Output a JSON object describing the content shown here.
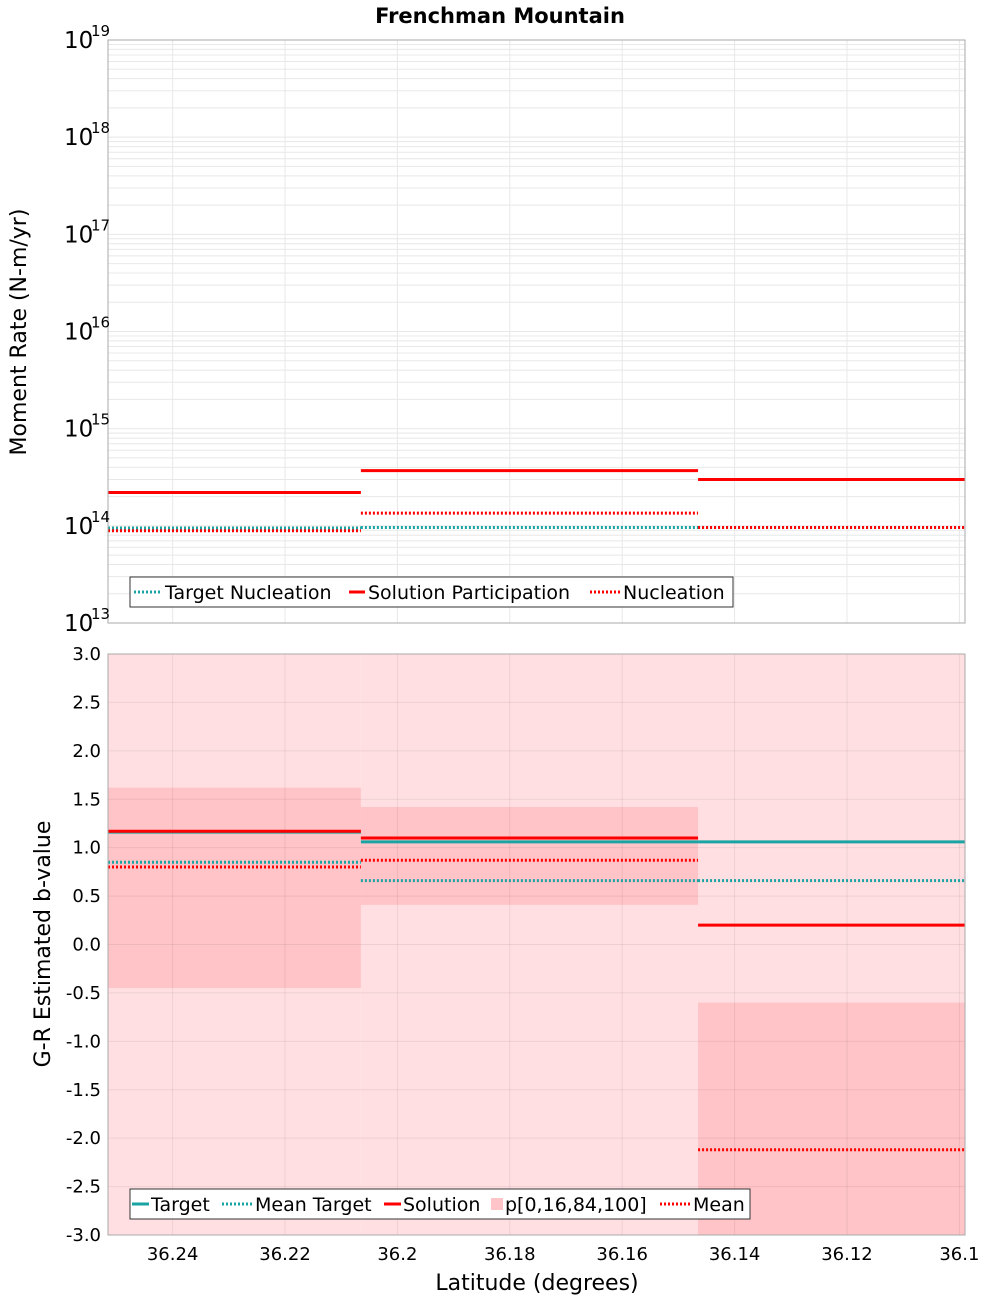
{
  "title": "Frenchman Mountain",
  "colors": {
    "target": "#1aa3a3",
    "solution": "#ff0000",
    "band_outer": "#ffdfe2",
    "band_inner": "#ffc4c7",
    "grid": "#e8e8e8",
    "frame": "#aaaaaa"
  },
  "chart_data": [
    {
      "type": "line",
      "title": "Frenchman Mountain",
      "ylabel": "Moment Rate (N-m/yr)",
      "yscale": "log",
      "ylim": [
        10000000000000.0,
        1e+19
      ],
      "y_ticks": [
        {
          "base": "10",
          "exp": "13"
        },
        {
          "base": "10",
          "exp": "14"
        },
        {
          "base": "10",
          "exp": "15"
        },
        {
          "base": "10",
          "exp": "16"
        },
        {
          "base": "10",
          "exp": "17"
        },
        {
          "base": "10",
          "exp": "18"
        },
        {
          "base": "10",
          "exp": "19"
        }
      ],
      "x_edges": [
        36.2515,
        36.2065,
        36.1465,
        36.099
      ],
      "series": [
        {
          "name": "Target Nucleation",
          "style": "dotted",
          "color": "#1aa3a3",
          "values": [
            95000000000000.0,
            96000000000000.0,
            96000000000000.0
          ]
        },
        {
          "name": "Solution Participation",
          "style": "solid",
          "color": "#ff0000",
          "values": [
            220000000000000.0,
            370000000000000.0,
            300000000000000.0
          ]
        },
        {
          "name": "Nucleation",
          "style": "dotted",
          "color": "#ff0000",
          "values": [
            89000000000000.0,
            135000000000000.0,
            96000000000000.0
          ]
        }
      ],
      "legend": [
        "Target Nucleation",
        "Solution Participation",
        "Nucleation"
      ]
    },
    {
      "type": "line",
      "xlabel": "Latitude (degrees)",
      "ylabel": "G-R Estimated b-value",
      "ylim": [
        -3.0,
        3.0
      ],
      "y_ticks": [
        "-3.0",
        "-2.5",
        "-2.0",
        "-1.5",
        "-1.0",
        "-0.5",
        "0.0",
        "0.5",
        "1.0",
        "1.5",
        "2.0",
        "2.5",
        "3.0"
      ],
      "x_ticks": [
        "36.24",
        "36.22",
        "36.2",
        "36.18",
        "36.16",
        "36.14",
        "36.12",
        "36.1"
      ],
      "xlim": [
        36.2515,
        36.099
      ],
      "x_edges": [
        36.2515,
        36.2065,
        36.1465,
        36.099
      ],
      "bands": {
        "name": "p[0,16,84,100]",
        "outer": [
          [
            -3.0,
            3.0
          ],
          [
            -3.0,
            3.0
          ],
          [
            -3.0,
            3.0
          ]
        ],
        "inner": [
          [
            -0.45,
            1.62
          ],
          [
            0.41,
            1.42
          ],
          [
            -3.0,
            -0.6
          ]
        ]
      },
      "series": [
        {
          "name": "Target",
          "style": "solid",
          "color": "#1aa3a3",
          "values": [
            1.16,
            1.06,
            1.06
          ]
        },
        {
          "name": "Mean Target",
          "style": "dotted",
          "color": "#1aa3a3",
          "values": [
            0.85,
            0.66,
            0.66
          ]
        },
        {
          "name": "Solution",
          "style": "solid",
          "color": "#ff0000",
          "values": [
            1.17,
            1.1,
            0.2
          ]
        },
        {
          "name": "Mean",
          "style": "dotted",
          "color": "#ff0000",
          "values": [
            0.8,
            0.87,
            -2.12
          ]
        }
      ],
      "legend": [
        "Target",
        "Mean Target",
        "Solution",
        "p[0,16,84,100]",
        "Mean"
      ]
    }
  ]
}
